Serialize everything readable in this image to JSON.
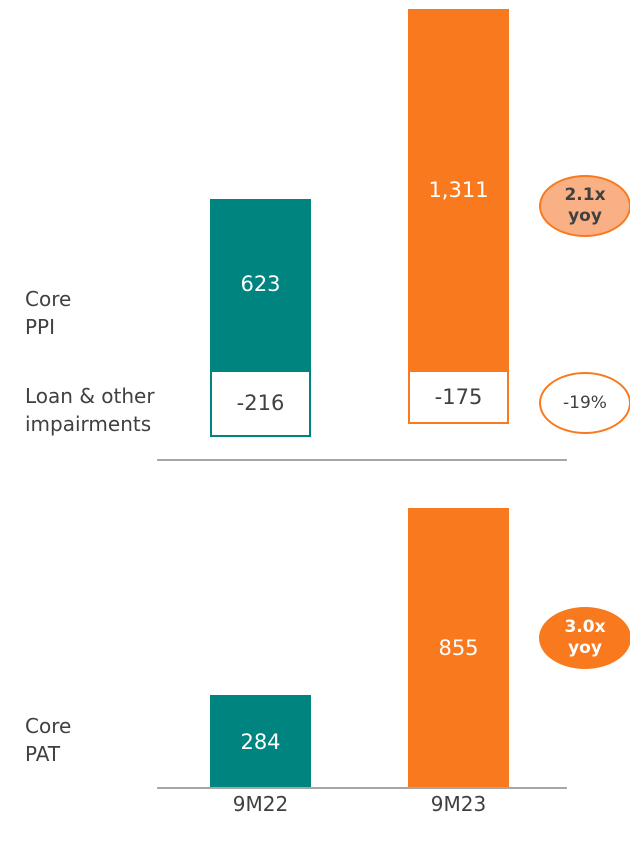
{
  "chart_data": {
    "type": "bar",
    "categories": [
      "9M22",
      "9M23"
    ],
    "colors": [
      "#00847f",
      "#f97a1e"
    ],
    "series": [
      {
        "name": "Core PPI",
        "values": [
          623,
          1311
        ],
        "value_labels": [
          "623",
          "1,311"
        ]
      },
      {
        "name": "Loan & other impairments",
        "values": [
          -216,
          -175
        ]
      },
      {
        "name": "Core PAT",
        "values": [
          284,
          855
        ]
      }
    ],
    "annotations": [
      "2.1x yoy",
      "-19%",
      "3.0x yoy"
    ]
  }
}
